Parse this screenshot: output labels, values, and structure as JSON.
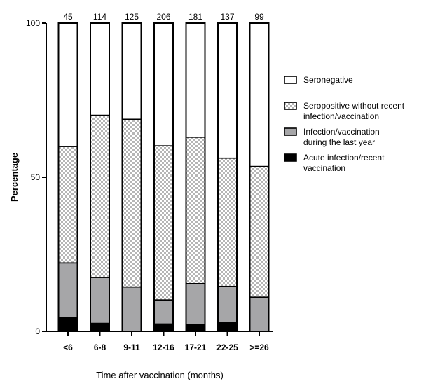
{
  "chart_data": {
    "type": "bar",
    "stacked": true,
    "categories": [
      "<6",
      "6-8",
      "9-11",
      "12-16",
      "17-21",
      "22-25",
      ">=26"
    ],
    "n_labels": [
      "45",
      "114",
      "125",
      "206",
      "181",
      "137",
      "99"
    ],
    "xlabel": "Time after vaccination (months)",
    "ylabel": "Percentage",
    "ylim": [
      0,
      100
    ],
    "yticks": [
      "0",
      "50",
      "100"
    ],
    "grid": false,
    "legend_position": "right",
    "series": [
      {
        "name": "Acute infection/recent vaccination",
        "legend_lines": [
          "Acute infection/recent",
          "vaccination"
        ],
        "fill": "solid-black",
        "values": [
          4.4,
          2.6,
          0,
          2.4,
          2.2,
          2.9,
          0
        ]
      },
      {
        "name": "Infection/vaccination during the last year",
        "legend_lines": [
          "Infection/vaccination",
          "during the last year"
        ],
        "fill": "solid-gray",
        "values": [
          17.8,
          14.9,
          14.4,
          7.8,
          13.3,
          11.7,
          11.1
        ]
      },
      {
        "name": "Seropositive without recent infection/vaccination",
        "legend_lines": [
          "Seropositive without recent",
          "infection/vaccination"
        ],
        "fill": "checkered",
        "values": [
          37.8,
          52.6,
          54.4,
          50.0,
          47.5,
          41.6,
          42.4
        ]
      },
      {
        "name": "Seronegative",
        "legend_lines": [
          "Seronegative"
        ],
        "fill": "white",
        "values": [
          40.0,
          29.9,
          31.2,
          39.8,
          37.0,
          43.8,
          46.5
        ]
      }
    ],
    "colors": {
      "black": "#000000",
      "gray": "#a6a6a8",
      "checker_light": "#ffffff",
      "checker_dark": "#b5b5b5",
      "white": "#ffffff"
    }
  }
}
